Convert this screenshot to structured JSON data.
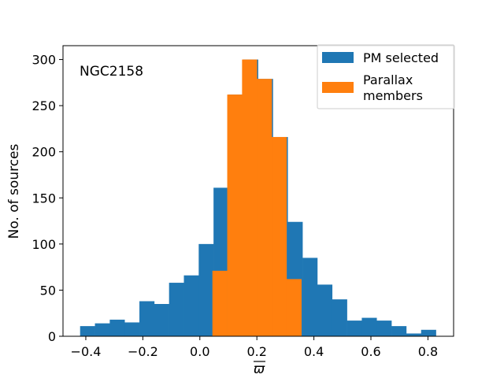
{
  "chart_data": {
    "type": "bar",
    "title": "",
    "annotation": "NGC2158",
    "xlabel": "ϖ",
    "xlabel_overline": true,
    "ylabel": "No. of sources",
    "xlim": [
      -0.48,
      0.89
    ],
    "ylim": [
      0,
      315
    ],
    "xticks": [
      -0.4,
      -0.2,
      0.0,
      0.2,
      0.4,
      0.6,
      0.8
    ],
    "xtick_labels": [
      "−0.4",
      "−0.2",
      "0.0",
      "0.2",
      "0.4",
      "0.6",
      "0.8"
    ],
    "yticks": [
      0,
      50,
      100,
      150,
      200,
      250,
      300
    ],
    "ytick_labels": [
      "0",
      "50",
      "100",
      "150",
      "200",
      "250",
      "300"
    ],
    "legend_position": "top-right",
    "series": [
      {
        "name": "PM selected",
        "color": "#1f77b4",
        "bin_edges": [
          -0.42,
          -0.368,
          -0.316,
          -0.264,
          -0.212,
          -0.16,
          -0.108,
          -0.056,
          -0.004,
          0.048,
          0.1,
          0.152,
          0.204,
          0.256,
          0.308,
          0.36,
          0.412,
          0.464,
          0.516,
          0.568,
          0.62,
          0.672,
          0.724,
          0.776,
          0.828
        ],
        "values": [
          11,
          14,
          18,
          15,
          38,
          35,
          58,
          66,
          100,
          161,
          262,
          300,
          279,
          216,
          124,
          85,
          56,
          40,
          17,
          20,
          17,
          11,
          3,
          7
        ]
      },
      {
        "name": "Parallax\nmembers",
        "label_lines": [
          "Parallax",
          "members"
        ],
        "color": "#ff7f0e",
        "bin_edges": [
          0.044,
          0.096,
          0.148,
          0.2,
          0.252,
          0.304,
          0.356
        ],
        "values": [
          71,
          262,
          300,
          279,
          216,
          62
        ]
      }
    ]
  }
}
